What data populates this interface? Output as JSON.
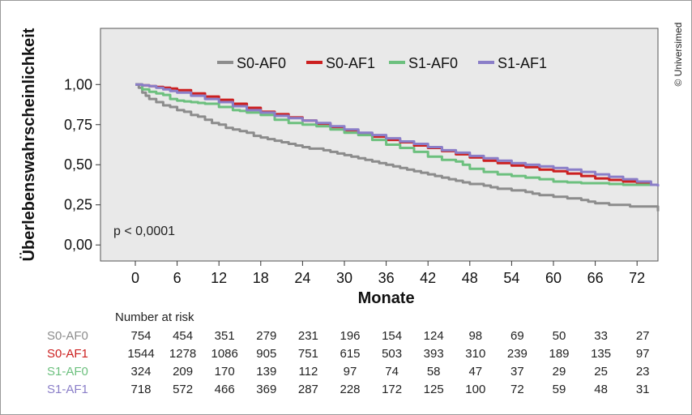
{
  "copyright": "© Universimed",
  "chart_data": {
    "type": "line",
    "subtype": "kaplan-meier",
    "xlabel": "Monate",
    "ylabel": "Überlebenswahrscheinlichkeit",
    "xlim": [
      -5,
      75
    ],
    "ylim": [
      -0.1,
      1.35
    ],
    "xticks": [
      0,
      6,
      12,
      18,
      24,
      30,
      36,
      42,
      48,
      54,
      60,
      66,
      72
    ],
    "yticks": [
      0,
      0.25,
      0.5,
      0.75,
      1
    ],
    "ytick_labels": [
      "0,00",
      "0,25",
      "0,50",
      "0,75",
      "1,00"
    ],
    "annotation": "p < 0,0001",
    "legend_placement": "top-center",
    "background": "#e9e9e9",
    "series": [
      {
        "name": "S0-AF0",
        "color": "#8c8c8c",
        "x": [
          0,
          0.5,
          1,
          1.5,
          2,
          3,
          4,
          5,
          6,
          7,
          8,
          9,
          10,
          11,
          12,
          13,
          14,
          15,
          16,
          17,
          18,
          19,
          20,
          21,
          22,
          23,
          24,
          25,
          26,
          27,
          28,
          29,
          30,
          31,
          32,
          33,
          34,
          35,
          36,
          37,
          38,
          39,
          40,
          41,
          42,
          43,
          44,
          45,
          46,
          47,
          48,
          49,
          50,
          51,
          52,
          53,
          54,
          55,
          56,
          57,
          58,
          59,
          60,
          61,
          62,
          63,
          64,
          65,
          66,
          67,
          68,
          69,
          70,
          71,
          72,
          73,
          74,
          75
        ],
        "y": [
          1.0,
          0.98,
          0.95,
          0.93,
          0.91,
          0.89,
          0.87,
          0.86,
          0.84,
          0.83,
          0.81,
          0.8,
          0.78,
          0.76,
          0.75,
          0.73,
          0.72,
          0.71,
          0.7,
          0.68,
          0.67,
          0.66,
          0.65,
          0.64,
          0.63,
          0.62,
          0.61,
          0.6,
          0.6,
          0.59,
          0.58,
          0.57,
          0.56,
          0.55,
          0.54,
          0.53,
          0.52,
          0.51,
          0.5,
          0.49,
          0.48,
          0.47,
          0.46,
          0.45,
          0.44,
          0.43,
          0.42,
          0.41,
          0.4,
          0.39,
          0.38,
          0.38,
          0.37,
          0.36,
          0.35,
          0.35,
          0.34,
          0.34,
          0.33,
          0.32,
          0.31,
          0.31,
          0.3,
          0.3,
          0.29,
          0.29,
          0.28,
          0.27,
          0.26,
          0.26,
          0.25,
          0.25,
          0.25,
          0.24,
          0.24,
          0.24,
          0.24,
          0.21
        ]
      },
      {
        "name": "S0-AF1",
        "color": "#cc1f1f",
        "x": [
          0,
          1,
          2,
          3,
          4,
          5,
          6,
          8,
          10,
          12,
          14,
          16,
          18,
          20,
          22,
          24,
          26,
          28,
          30,
          32,
          34,
          36,
          38,
          40,
          42,
          44,
          46,
          48,
          50,
          52,
          54,
          56,
          58,
          60,
          62,
          64,
          66,
          68,
          70,
          72,
          74,
          75
        ],
        "y": [
          1.0,
          0.995,
          0.99,
          0.985,
          0.98,
          0.975,
          0.965,
          0.945,
          0.925,
          0.905,
          0.88,
          0.855,
          0.83,
          0.815,
          0.795,
          0.775,
          0.755,
          0.735,
          0.715,
          0.695,
          0.675,
          0.655,
          0.64,
          0.62,
          0.605,
          0.585,
          0.565,
          0.545,
          0.525,
          0.51,
          0.495,
          0.485,
          0.47,
          0.46,
          0.445,
          0.43,
          0.415,
          0.405,
          0.395,
          0.385,
          0.375,
          0.375
        ]
      },
      {
        "name": "S1-AF0",
        "color": "#6cc07e",
        "x": [
          0,
          1,
          2,
          3,
          4,
          5,
          6,
          7,
          8,
          9,
          10,
          12,
          14,
          15,
          16,
          18,
          20,
          22,
          24,
          26,
          28,
          30,
          32,
          34,
          36,
          38,
          40,
          42,
          44,
          46,
          47,
          48,
          50,
          52,
          54,
          56,
          58,
          60,
          62,
          64,
          66,
          68,
          70,
          72,
          74,
          75
        ],
        "y": [
          1.0,
          0.97,
          0.955,
          0.945,
          0.935,
          0.91,
          0.9,
          0.895,
          0.89,
          0.885,
          0.88,
          0.86,
          0.84,
          0.835,
          0.825,
          0.81,
          0.78,
          0.76,
          0.75,
          0.74,
          0.72,
          0.7,
          0.685,
          0.655,
          0.625,
          0.605,
          0.58,
          0.55,
          0.53,
          0.52,
          0.5,
          0.475,
          0.455,
          0.44,
          0.43,
          0.42,
          0.41,
          0.395,
          0.39,
          0.385,
          0.385,
          0.38,
          0.375,
          0.375,
          0.375,
          0.375
        ]
      },
      {
        "name": "S1-AF1",
        "color": "#8a7ec8",
        "x": [
          0,
          1,
          2,
          3,
          4,
          5,
          6,
          8,
          10,
          12,
          14,
          16,
          18,
          20,
          22,
          24,
          26,
          28,
          30,
          32,
          34,
          36,
          38,
          40,
          42,
          44,
          46,
          48,
          50,
          52,
          54,
          56,
          58,
          60,
          62,
          64,
          66,
          68,
          70,
          72,
          74,
          75
        ],
        "y": [
          1.0,
          0.995,
          0.99,
          0.98,
          0.97,
          0.96,
          0.95,
          0.93,
          0.91,
          0.89,
          0.865,
          0.84,
          0.825,
          0.805,
          0.79,
          0.775,
          0.76,
          0.74,
          0.72,
          0.7,
          0.685,
          0.665,
          0.645,
          0.63,
          0.61,
          0.59,
          0.575,
          0.555,
          0.54,
          0.525,
          0.51,
          0.5,
          0.49,
          0.48,
          0.47,
          0.455,
          0.44,
          0.425,
          0.41,
          0.395,
          0.375,
          0.365
        ]
      }
    ],
    "risk_table": {
      "title": "Number at risk",
      "rows": [
        {
          "name": "S0-AF0",
          "color": "#8c8c8c",
          "values": [
            754,
            454,
            351,
            279,
            231,
            196,
            154,
            124,
            98,
            69,
            50,
            33,
            27
          ]
        },
        {
          "name": "S0-AF1",
          "color": "#cc1f1f",
          "values": [
            1544,
            1278,
            1086,
            905,
            751,
            615,
            503,
            393,
            310,
            239,
            189,
            135,
            97
          ]
        },
        {
          "name": "S1-AF0",
          "color": "#6cc07e",
          "values": [
            324,
            209,
            170,
            139,
            112,
            97,
            74,
            58,
            47,
            37,
            29,
            25,
            23
          ]
        },
        {
          "name": "S1-AF1",
          "color": "#8a7ec8",
          "values": [
            718,
            572,
            466,
            369,
            287,
            228,
            172,
            125,
            100,
            72,
            59,
            48,
            31
          ]
        }
      ]
    }
  }
}
